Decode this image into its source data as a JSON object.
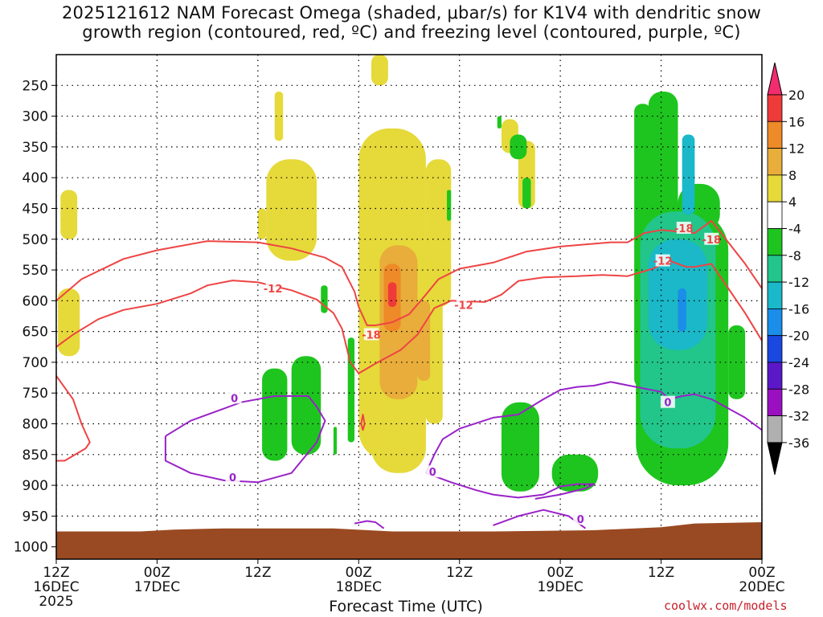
{
  "title": {
    "line1": "2025121612 NAM Forecast Omega (shaded, μbar/s) for K1V4 with dendritic snow",
    "line2": "growth region (contoured, red, ºC) and freezing level (contoured, purple, ºC)"
  },
  "credit": "coolwx.com/models",
  "chart_data": {
    "type": "heatmap",
    "xlabel": "Forecast Time (UTC)",
    "ylabel": "",
    "x_ticks": [
      {
        "h": 0,
        "lines": [
          "12Z",
          "16DEC",
          "2025"
        ]
      },
      {
        "h": 12,
        "lines": [
          "00Z",
          "17DEC"
        ]
      },
      {
        "h": 24,
        "lines": [
          "12Z"
        ]
      },
      {
        "h": 36,
        "lines": [
          "00Z",
          "18DEC"
        ]
      },
      {
        "h": 48,
        "lines": [
          "12Z"
        ]
      },
      {
        "h": 60,
        "lines": [
          "00Z",
          "19DEC"
        ]
      },
      {
        "h": 72,
        "lines": [
          "12Z"
        ]
      },
      {
        "h": 84,
        "lines": [
          "00Z",
          "20DEC"
        ]
      }
    ],
    "xlim_hours": [
      0,
      84
    ],
    "y_ticks": [
      250,
      300,
      350,
      400,
      450,
      500,
      550,
      600,
      650,
      700,
      750,
      800,
      850,
      900,
      950,
      1000
    ],
    "ylim_mb": [
      200,
      1020
    ],
    "colorbar": {
      "labels": [
        "20",
        "16",
        "12",
        "8",
        "4",
        "-4",
        "-8",
        "-12",
        "-16",
        "-20",
        "-24",
        "-28",
        "-32",
        "-36"
      ],
      "colors": [
        "#f22c6e",
        "#ef3a3a",
        "#ee8a28",
        "#e8ad3a",
        "#e6d93a",
        "#ffffff",
        "#1ec51e",
        "#22c58a",
        "#1ab8c8",
        "#1a8ee8",
        "#1a48e0",
        "#5a18c8",
        "#9a10c0",
        "#b0b0b0",
        "#000000"
      ]
    },
    "contour_labels": {
      "dgz": [
        "-12",
        "-18",
        "-12",
        "-18",
        "-12",
        "-18"
      ],
      "freezing": [
        "0",
        "0",
        "0",
        "0",
        "0",
        "0"
      ]
    },
    "shaded_regions": [
      {
        "omega": 4,
        "cells": [
          [
            0.5,
            420,
            2.5,
            500
          ],
          [
            0.2,
            580,
            2.8,
            690
          ],
          [
            26,
            260,
            27,
            340
          ],
          [
            25,
            370,
            31,
            535
          ],
          [
            24,
            450,
            25,
            500
          ],
          [
            37.5,
            200,
            39.5,
            250
          ],
          [
            36,
            320,
            44,
            860
          ],
          [
            44,
            370,
            47,
            610
          ],
          [
            53,
            305,
            55,
            360
          ],
          [
            55,
            340,
            57,
            450
          ],
          [
            46,
            395,
            47,
            440
          ]
        ]
      },
      {
        "omega": 8,
        "cells": [
          [
            37.5,
            470,
            44,
            880
          ],
          [
            44,
            565,
            46,
            800
          ]
        ]
      },
      {
        "omega": 12,
        "cells": [
          [
            38.5,
            510,
            43,
            760
          ],
          [
            43,
            600,
            44.5,
            730
          ]
        ]
      },
      {
        "omega": 16,
        "cells": [
          [
            39,
            540,
            41,
            650
          ]
        ]
      },
      {
        "omega": 20,
        "cells": [
          [
            39.5,
            570,
            40.5,
            610
          ]
        ]
      },
      {
        "omega": -4,
        "cells": [
          [
            52.5,
            300,
            53,
            320
          ],
          [
            54,
            330,
            56,
            370
          ],
          [
            55.5,
            400,
            56.5,
            450
          ],
          [
            46.5,
            420,
            47,
            470
          ],
          [
            31.5,
            575,
            32.3,
            620
          ],
          [
            34.7,
            660,
            35.5,
            830
          ],
          [
            33,
            805,
            33.4,
            850
          ],
          [
            24.5,
            710,
            27.5,
            860
          ],
          [
            28,
            690,
            31.5,
            850
          ],
          [
            53,
            765,
            57.5,
            910
          ],
          [
            59,
            850,
            64.5,
            910
          ],
          [
            68.8,
            280,
            70.8,
            740
          ],
          [
            70.5,
            260,
            74,
            850
          ],
          [
            74,
            410,
            79,
            490
          ],
          [
            69,
            450,
            80,
            900
          ],
          [
            80,
            640,
            82,
            760
          ]
        ]
      },
      {
        "omega": -8,
        "cells": [
          [
            69.5,
            455,
            78.5,
            840
          ]
        ]
      },
      {
        "omega": -12,
        "cells": [
          [
            70.5,
            500,
            77.5,
            680
          ],
          [
            74.5,
            330,
            76,
            460
          ]
        ]
      },
      {
        "omega": -16,
        "cells": [
          [
            74,
            580,
            75,
            650
          ]
        ]
      }
    ]
  }
}
